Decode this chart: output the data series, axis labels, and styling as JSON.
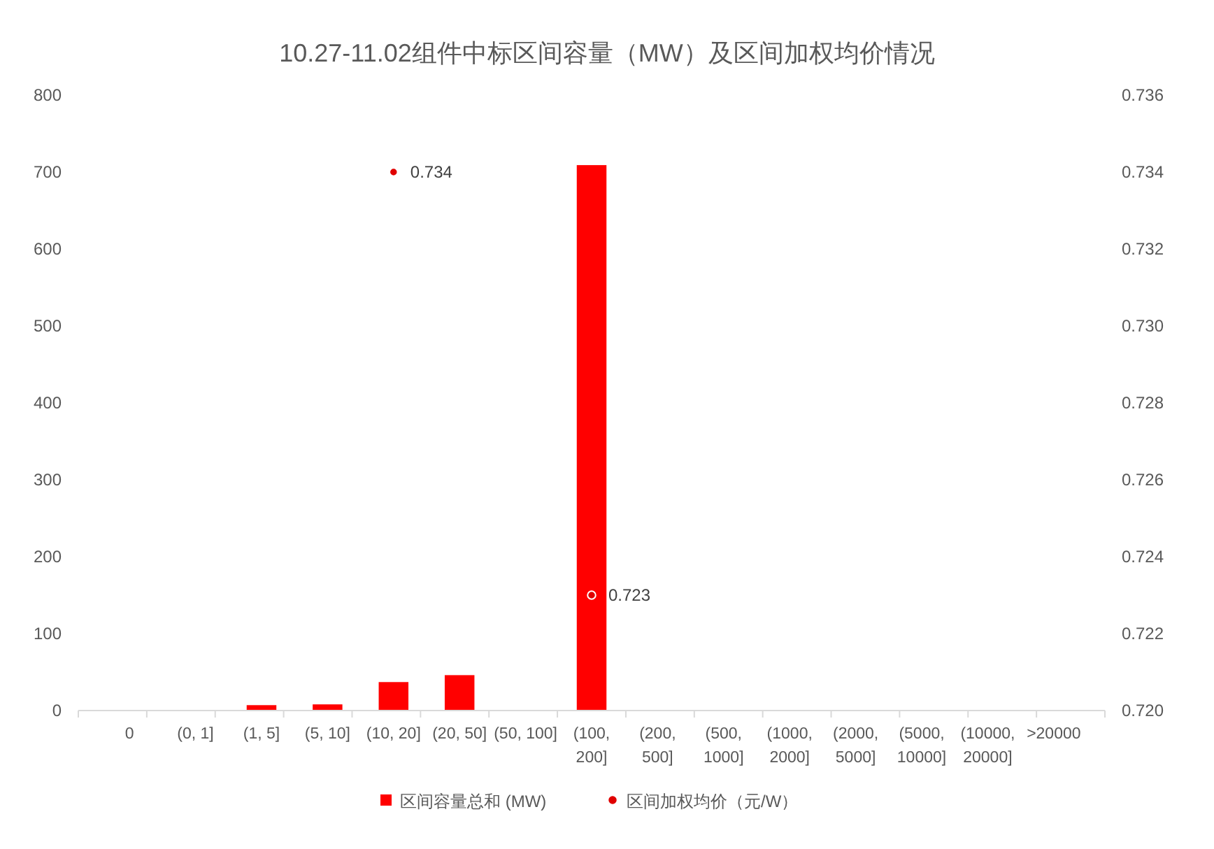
{
  "chart_data": {
    "type": "bar",
    "title": "10.27-11.02组件中标区间容量（MW）及区间加权均价情况",
    "categories": [
      "0",
      "(0, 1]",
      "(1, 5]",
      "(5, 10]",
      "(10, 20]",
      "(20, 50]",
      "(50, 100]",
      "(100, 200]",
      "(200, 500]",
      "(500, 1000]",
      "(1000, 2000]",
      "(2000, 5000]",
      "(5000, 10000]",
      "(10000, 20000]",
      ">20000"
    ],
    "series": [
      {
        "name": "区间容量总和 (MW)",
        "color": "#ff0000",
        "values": [
          0,
          0,
          7,
          8,
          37,
          46,
          0,
          709,
          0,
          0,
          0,
          0,
          0,
          0,
          0
        ]
      },
      {
        "name": "区间加权均价（元/W）",
        "type": "scatter",
        "axis": "y2",
        "color": "#e00000",
        "marker": "circle",
        "x": [
          "(10, 20]",
          "(100, 200]"
        ],
        "values": [
          0.734,
          0.723
        ],
        "value_labels": [
          "0.734",
          "0.723"
        ]
      }
    ],
    "ylim": [
      0,
      800
    ],
    "yticks": [
      0,
      100,
      200,
      300,
      400,
      500,
      600,
      700,
      800
    ],
    "y2lim": [
      0.72,
      0.736
    ],
    "y2ticks": [
      {
        "value": 0.72,
        "label": "0.720"
      },
      0.722,
      0.724,
      0.726,
      0.728,
      {
        "value": 0.73,
        "label": "0.730"
      },
      0.732,
      0.734,
      0.736
    ],
    "legend": "bottom"
  }
}
